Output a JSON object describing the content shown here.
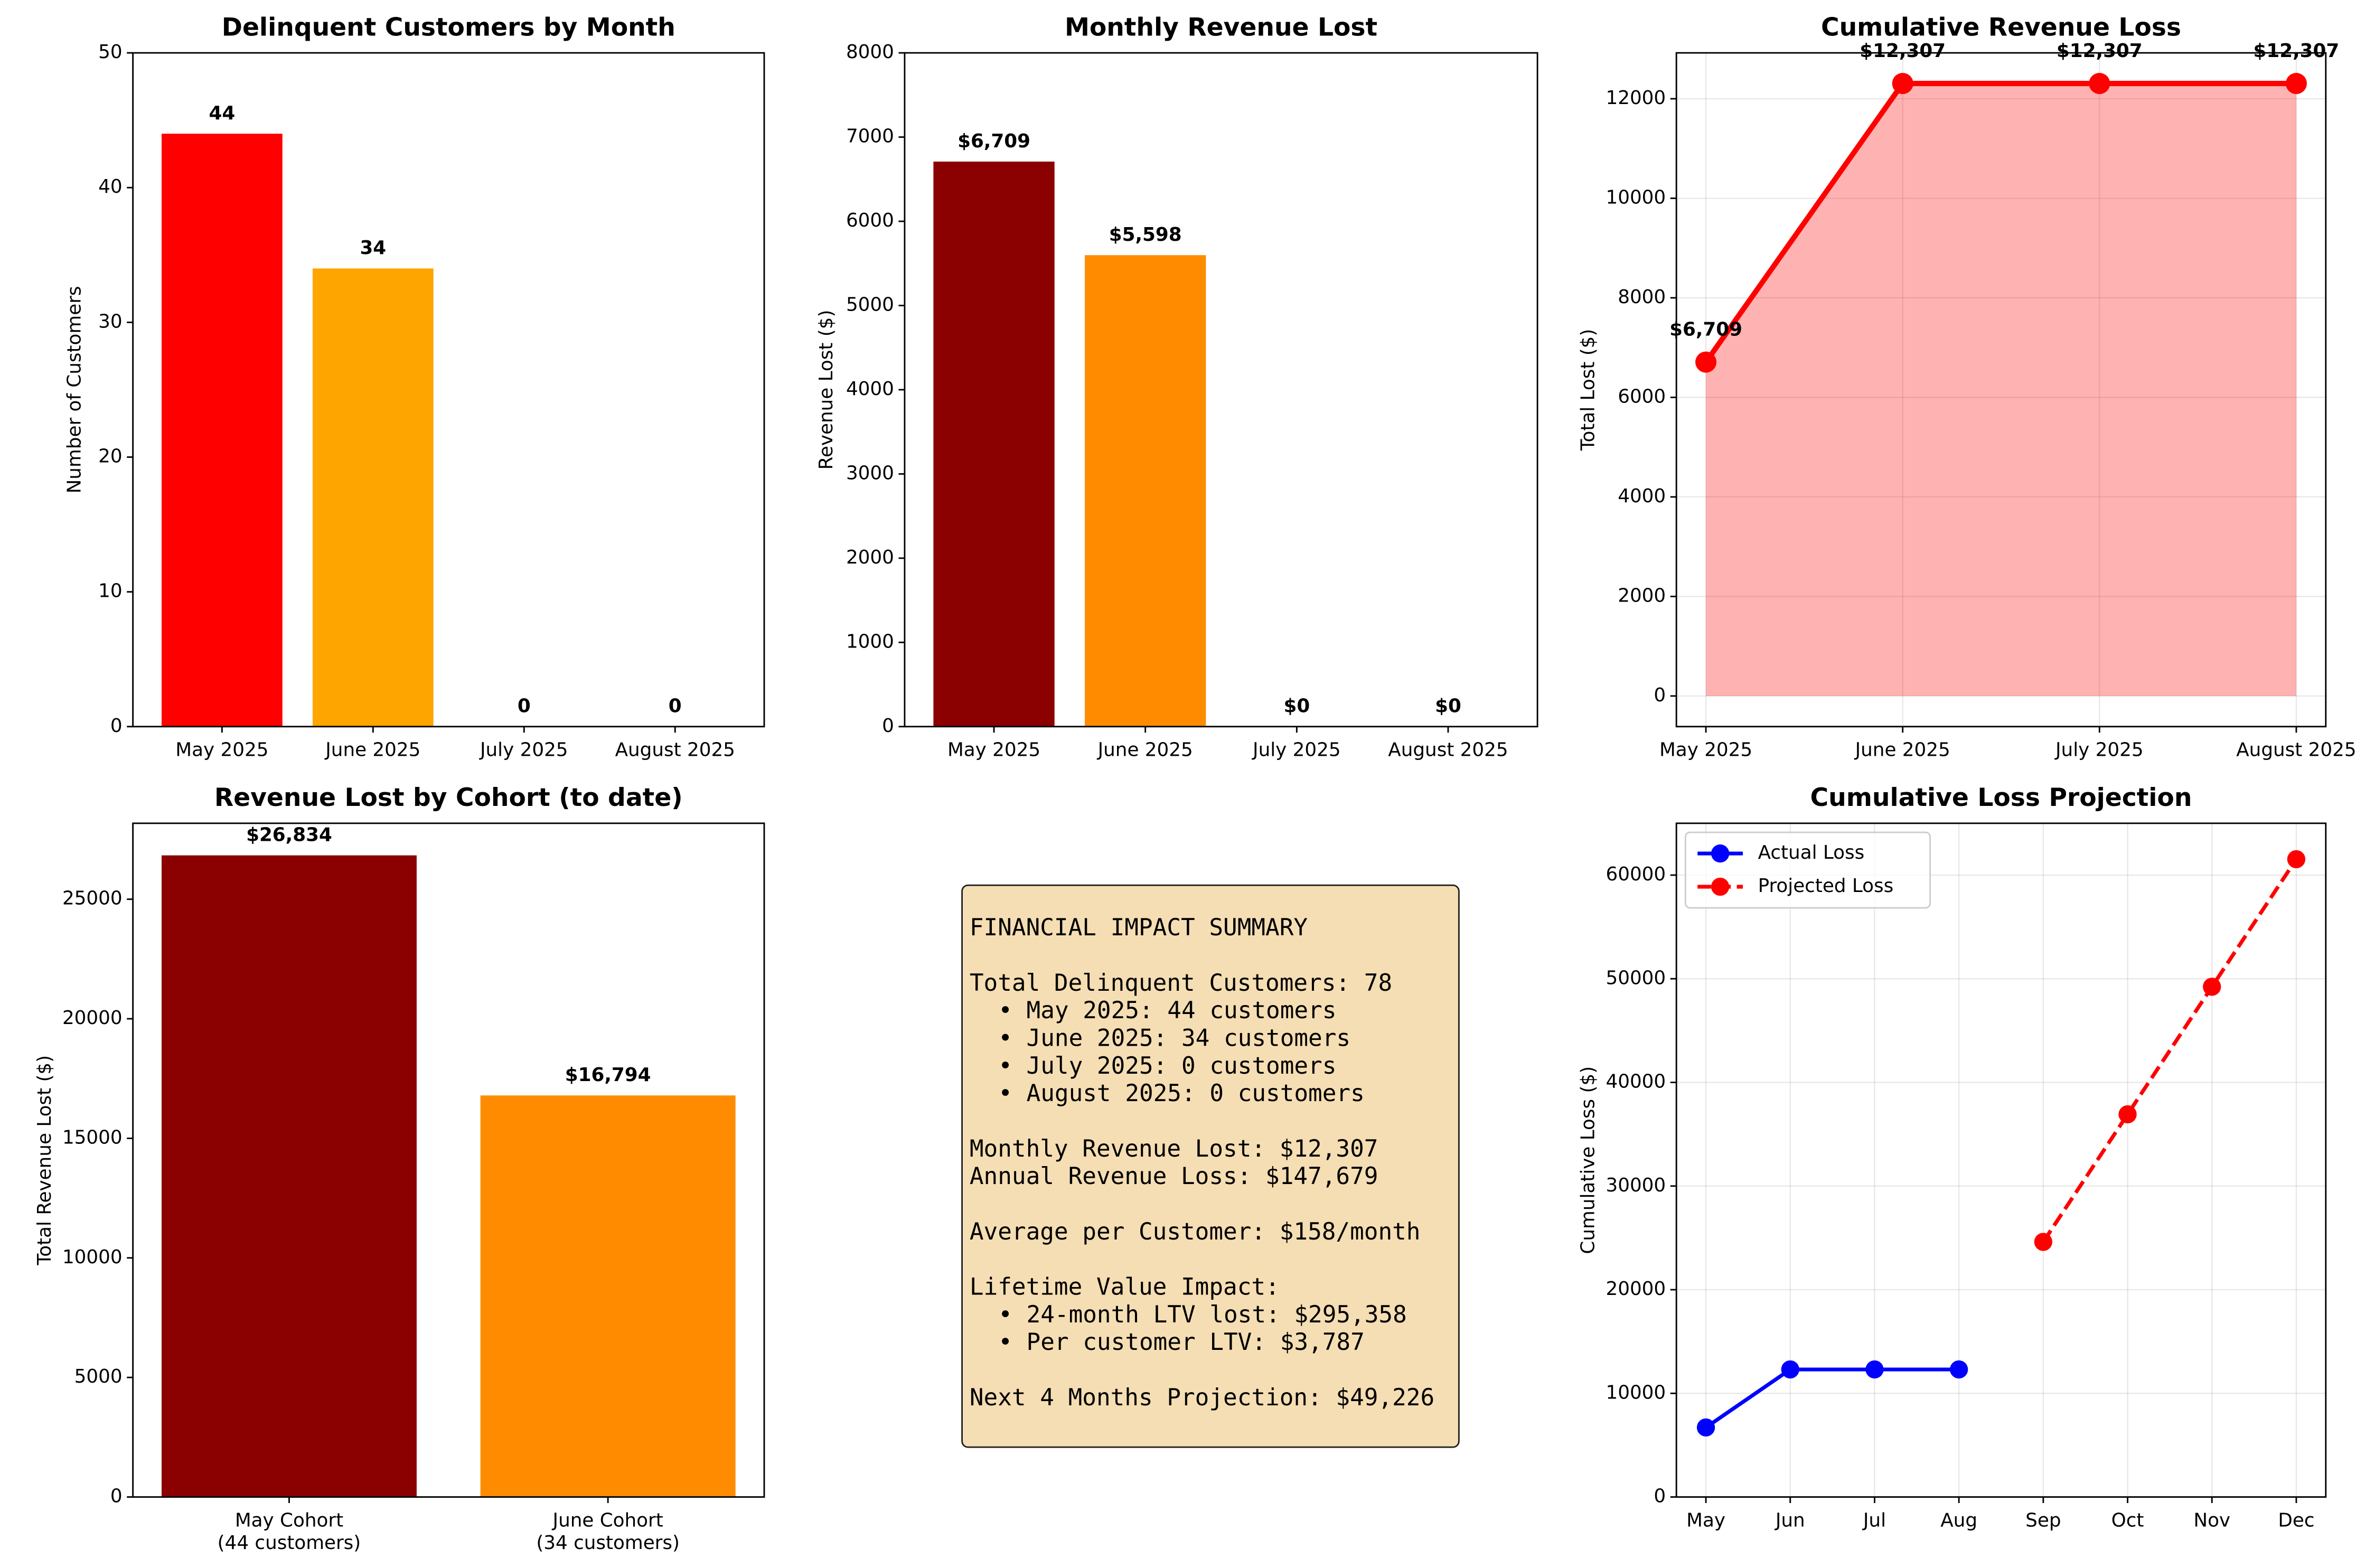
{
  "chart_data": [
    {
      "type": "bar",
      "title": "Delinquent Customers by Month",
      "ylabel": "Number of Customers",
      "categories": [
        "May 2025",
        "June 2025",
        "July 2025",
        "August 2025"
      ],
      "values": [
        44,
        34,
        0,
        0
      ],
      "colors": [
        "#ff0000",
        "#ffa500",
        "#ffd700",
        "#008000"
      ],
      "ylim": [
        0,
        50
      ],
      "yticks": [
        0,
        10,
        20,
        30,
        40,
        50
      ],
      "grid": false
    },
    {
      "type": "bar",
      "title": "Monthly Revenue Lost",
      "ylabel": "Revenue Lost ($)",
      "categories": [
        "May 2025",
        "June 2025",
        "July 2025",
        "August 2025"
      ],
      "values": [
        6709,
        5598,
        0,
        0
      ],
      "value_labels": [
        "$6,709",
        "$5,598",
        "$0",
        "$0"
      ],
      "colors": [
        "#8b0000",
        "#ff8c00",
        "#ffd700",
        "#008000"
      ],
      "ylim": [
        0,
        8000
      ],
      "yticks": [
        0,
        1000,
        2000,
        3000,
        4000,
        5000,
        6000,
        7000,
        8000
      ],
      "grid": false
    },
    {
      "type": "area",
      "title": "Cumulative Revenue Loss",
      "ylabel": "Total Lost ($)",
      "categories": [
        "May 2025",
        "June 2025",
        "July 2025",
        "August 2025"
      ],
      "values": [
        6709,
        12307,
        12307,
        12307
      ],
      "value_labels": [
        "$6,709",
        "$12,307",
        "$12,307",
        "$12,307"
      ],
      "color": "#ff0000",
      "ylim": [
        -615,
        12922
      ],
      "yticks": [
        0,
        2000,
        4000,
        6000,
        8000,
        10000,
        12000
      ],
      "grid": true
    },
    {
      "type": "bar",
      "title": "Revenue Lost by Cohort (to date)",
      "ylabel": "Total Revenue Lost ($)",
      "categories": [
        "May Cohort\n(44 customers)",
        "June Cohort\n(34 customers)"
      ],
      "values": [
        26834,
        16794
      ],
      "value_labels": [
        "$26,834",
        "$16,794"
      ],
      "colors": [
        "#8b0000",
        "#ff8c00"
      ],
      "ylim": [
        0,
        28176
      ],
      "yticks": [
        0,
        5000,
        10000,
        15000,
        20000,
        25000
      ],
      "grid": false
    },
    {
      "type": "line",
      "title": "Cumulative Loss Projection",
      "ylabel": "Cumulative Loss ($)",
      "categories": [
        "May",
        "Jun",
        "Jul",
        "Aug",
        "Sep",
        "Oct",
        "Nov",
        "Dec"
      ],
      "series": [
        {
          "name": "Actual Loss",
          "color": "#0000ff",
          "linestyle": "solid",
          "values": [
            6709,
            12307,
            12307,
            12307,
            null,
            null,
            null,
            null
          ]
        },
        {
          "name": "Projected Loss",
          "color": "#ff0000",
          "linestyle": "dashed",
          "values": [
            null,
            null,
            null,
            null,
            24614,
            36921,
            49228,
            61535
          ]
        }
      ],
      "ylim": [
        0,
        65000
      ],
      "yticks": [
        0,
        10000,
        20000,
        30000,
        40000,
        50000,
        60000
      ],
      "grid": true,
      "legend": "upper left"
    }
  ],
  "summary": {
    "blocks": [
      {
        "lines": [
          "FINANCIAL IMPACT SUMMARY"
        ]
      },
      {
        "lines": [
          "Total Delinquent Customers: 78"
        ],
        "bullets": [
          "• May 2025: 44 customers",
          "• June 2025: 34 customers",
          "• July 2025: 0 customers",
          "• August 2025: 0 customers"
        ]
      },
      {
        "lines": [
          "Monthly Revenue Lost: $12,307",
          "Annual Revenue Loss: $147,679"
        ]
      },
      {
        "lines": [
          "Average per Customer: $158/month"
        ]
      },
      {
        "lines": [
          "Lifetime Value Impact:"
        ],
        "bullets": [
          "• 24-month LTV lost: $295,358",
          "• Per customer LTV: $3,787"
        ]
      },
      {
        "lines": [
          "Next 4 Months Projection: $49,226"
        ]
      }
    ]
  }
}
